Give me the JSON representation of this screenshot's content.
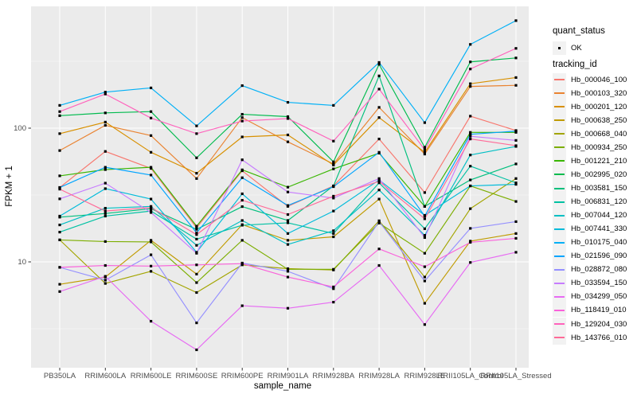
{
  "chart_data": {
    "type": "line",
    "title": "",
    "xlabel": "sample_name",
    "ylabel": "FPKM + 1",
    "y_scale": "log10",
    "ylim": [
      1.7,
      760
    ],
    "y_major_ticks": [
      10,
      100
    ],
    "y_tick_labels": [
      "10",
      "100"
    ],
    "y_minor_ticks": [
      3.162,
      31.62,
      316.2
    ],
    "grid": true,
    "legend_position": "right",
    "panel_color": "#EBEBEB",
    "grid_color": "#FFFFFF",
    "point_color": "#000000",
    "tick_label_color": "#4D4D4D",
    "categories": [
      "PB350LA",
      "RRIM600LA",
      "RRIM600LE",
      "RRIM600SE",
      "RRIM600PE",
      "RRIM901LA",
      "RRIM928BA",
      "RRIM928LA",
      "RRIM928LE",
      "RRII105LA_Control",
      "RRII105LA_Stressed"
    ],
    "series": [
      {
        "name": "Hb_000046_100",
        "color": "#F8766D",
        "values": [
          36,
          67,
          50,
          18,
          48,
          26,
          37,
          83,
          33,
          123,
          96
        ]
      },
      {
        "name": "Hb_000103_320",
        "color": "#EA8331",
        "values": [
          68,
          105,
          88,
          42,
          120,
          79,
          54,
          143,
          64,
          205,
          209
        ]
      },
      {
        "name": "Hb_000201_120",
        "color": "#D89000",
        "values": [
          91,
          111,
          66,
          46,
          86,
          89,
          53,
          120,
          66,
          215,
          239
        ]
      },
      {
        "name": "Hb_000638_250",
        "color": "#C09B00",
        "values": [
          6.8,
          7.7,
          14.5,
          8.1,
          19,
          14.5,
          15.4,
          29.5,
          4.9,
          14.3,
          16.3
        ]
      },
      {
        "name": "Hb_000668_040",
        "color": "#A3A500",
        "values": [
          14.6,
          6.9,
          8.5,
          5.9,
          9.5,
          8.9,
          8.7,
          20.3,
          7.7,
          25,
          42
        ]
      },
      {
        "name": "Hb_000934_250",
        "color": "#7CAE00",
        "values": [
          14.6,
          14.2,
          14.1,
          7.0,
          14.5,
          8.8,
          8.8,
          19.5,
          11.6,
          37,
          28.3
        ]
      },
      {
        "name": "Hb_001221_210",
        "color": "#39B600",
        "values": [
          44,
          49,
          51,
          18.5,
          48.8,
          36.2,
          49.6,
          65,
          26,
          93,
          93
        ]
      },
      {
        "name": "Hb_002995_020",
        "color": "#00BB4E",
        "values": [
          124,
          130,
          133,
          60,
          127,
          122,
          56,
          300,
          72,
          313,
          335
        ]
      },
      {
        "name": "Hb_003581_150",
        "color": "#00BF7D",
        "values": [
          21.6,
          23,
          25,
          17.5,
          25.9,
          20.4,
          37,
          246,
          26,
          41,
          54
        ]
      },
      {
        "name": "Hb_006831_120",
        "color": "#00C1A3",
        "values": [
          16.7,
          22,
          24,
          14.8,
          18.8,
          19.6,
          16.3,
          39,
          17.7,
          52,
          39
        ]
      },
      {
        "name": "Hb_007044_120",
        "color": "#00BFC4",
        "values": [
          18.9,
          25.2,
          26,
          13.3,
          20.4,
          13.5,
          17.1,
          34.5,
          15.8,
          63,
          73
        ]
      },
      {
        "name": "Hb_007441_330",
        "color": "#00BBDA",
        "values": [
          22,
          35.3,
          29.5,
          11.8,
          32.3,
          16.3,
          24,
          41,
          22.3,
          37,
          38
        ]
      },
      {
        "name": "Hb_010175_040",
        "color": "#00B0F6",
        "values": [
          148,
          186,
          200,
          104,
          208,
          156,
          148,
          310,
          110,
          423,
          637
        ]
      },
      {
        "name": "Hb_021596_090",
        "color": "#00A5FF",
        "values": [
          36,
          51,
          44.6,
          16.5,
          42.6,
          26.4,
          36.5,
          66,
          22,
          90,
          95
        ]
      },
      {
        "name": "Hb_028872_080",
        "color": "#9590FF",
        "values": [
          9.1,
          7.3,
          11.3,
          3.5,
          9.8,
          8.5,
          6.3,
          20,
          7.2,
          17.8,
          20
        ]
      },
      {
        "name": "Hb_033594_150",
        "color": "#C77CFF",
        "values": [
          29.6,
          38.8,
          23.4,
          11.6,
          58,
          33.3,
          30,
          42,
          15.2,
          87,
          81
        ]
      },
      {
        "name": "Hb_034299_050",
        "color": "#E76BF3",
        "values": [
          6.0,
          7.8,
          3.6,
          2.2,
          4.7,
          4.5,
          5.0,
          9.4,
          3.4,
          9.9,
          11.8
        ]
      },
      {
        "name": "Hb_118419_010",
        "color": "#FA62DB",
        "values": [
          9.1,
          9.4,
          9.3,
          9.5,
          9.7,
          7.7,
          6.5,
          12.5,
          9.2,
          14.0,
          15.0
        ]
      },
      {
        "name": "Hb_129204_030",
        "color": "#FF62BC",
        "values": [
          133,
          180,
          119,
          91,
          113,
          118,
          80,
          196,
          69,
          277,
          395
        ]
      },
      {
        "name": "Hb_143766_010",
        "color": "#FF6A98",
        "values": [
          35,
          24,
          25.5,
          16,
          28.9,
          22.6,
          31,
          40,
          21,
          83,
          74
        ]
      }
    ],
    "legend": {
      "quant_status_title": "quant_status",
      "quant_status_items": [
        "OK"
      ],
      "tracking_title": "tracking_id"
    }
  }
}
